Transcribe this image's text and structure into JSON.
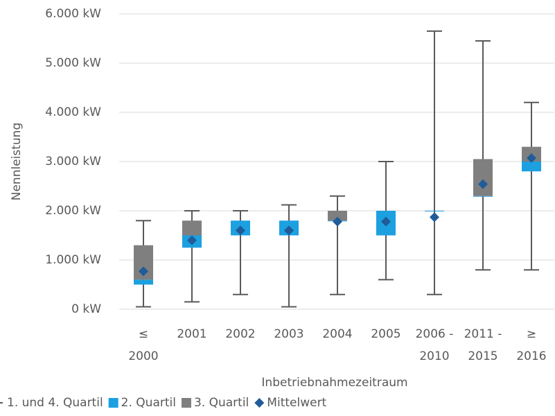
{
  "chart_data": {
    "type": "box",
    "categories": [
      [
        "≤",
        "2000"
      ],
      [
        "2001"
      ],
      [
        "2002"
      ],
      [
        "2003"
      ],
      [
        "2004"
      ],
      [
        "2005"
      ],
      [
        "2006 -",
        "2010"
      ],
      [
        "2011 -",
        "2015"
      ],
      [
        "≥",
        "2016"
      ]
    ],
    "min": [
      50,
      150,
      300,
      50,
      300,
      600,
      300,
      800,
      800
    ],
    "q1": [
      500,
      1250,
      1500,
      1500,
      1800,
      1500,
      2000,
      2300,
      2800
    ],
    "median": [
      600,
      1500,
      1800,
      1800,
      1800,
      2000,
      2000,
      2300,
      3000
    ],
    "q3": [
      1300,
      1800,
      1800,
      1800,
      2000,
      2000,
      2000,
      3050,
      3300
    ],
    "max": [
      1800,
      2000,
      2000,
      2120,
      2300,
      3000,
      5650,
      5450,
      4200
    ],
    "mean": [
      770,
      1400,
      1600,
      1600,
      1780,
      1780,
      1870,
      2540,
      3070
    ],
    "legend": [
      {
        "name": "1. und 4. Quartil",
        "color": "#595959"
      },
      {
        "name": "2. Quartil",
        "color": "#1ca0e0"
      },
      {
        "name": "3. Quartil",
        "color": "#7f7f7f"
      },
      {
        "name": "Mittelwert",
        "color": "#1f5c99"
      }
    ],
    "ylim": [
      0,
      6000
    ],
    "yticks": [
      {
        "value": 0,
        "label": "0 kW"
      },
      {
        "value": 1000,
        "label": "1.000 kW"
      },
      {
        "value": 2000,
        "label": "2.000 kW"
      },
      {
        "value": 3000,
        "label": "3.000 kW"
      },
      {
        "value": 4000,
        "label": "4.000 kW"
      },
      {
        "value": 5000,
        "label": "5.000 kW"
      },
      {
        "value": 6000,
        "label": "6.000 kW"
      }
    ],
    "y_label": "Nennleistung",
    "x_label": "Inbetriebnahmezeitraum",
    "grid": true
  }
}
